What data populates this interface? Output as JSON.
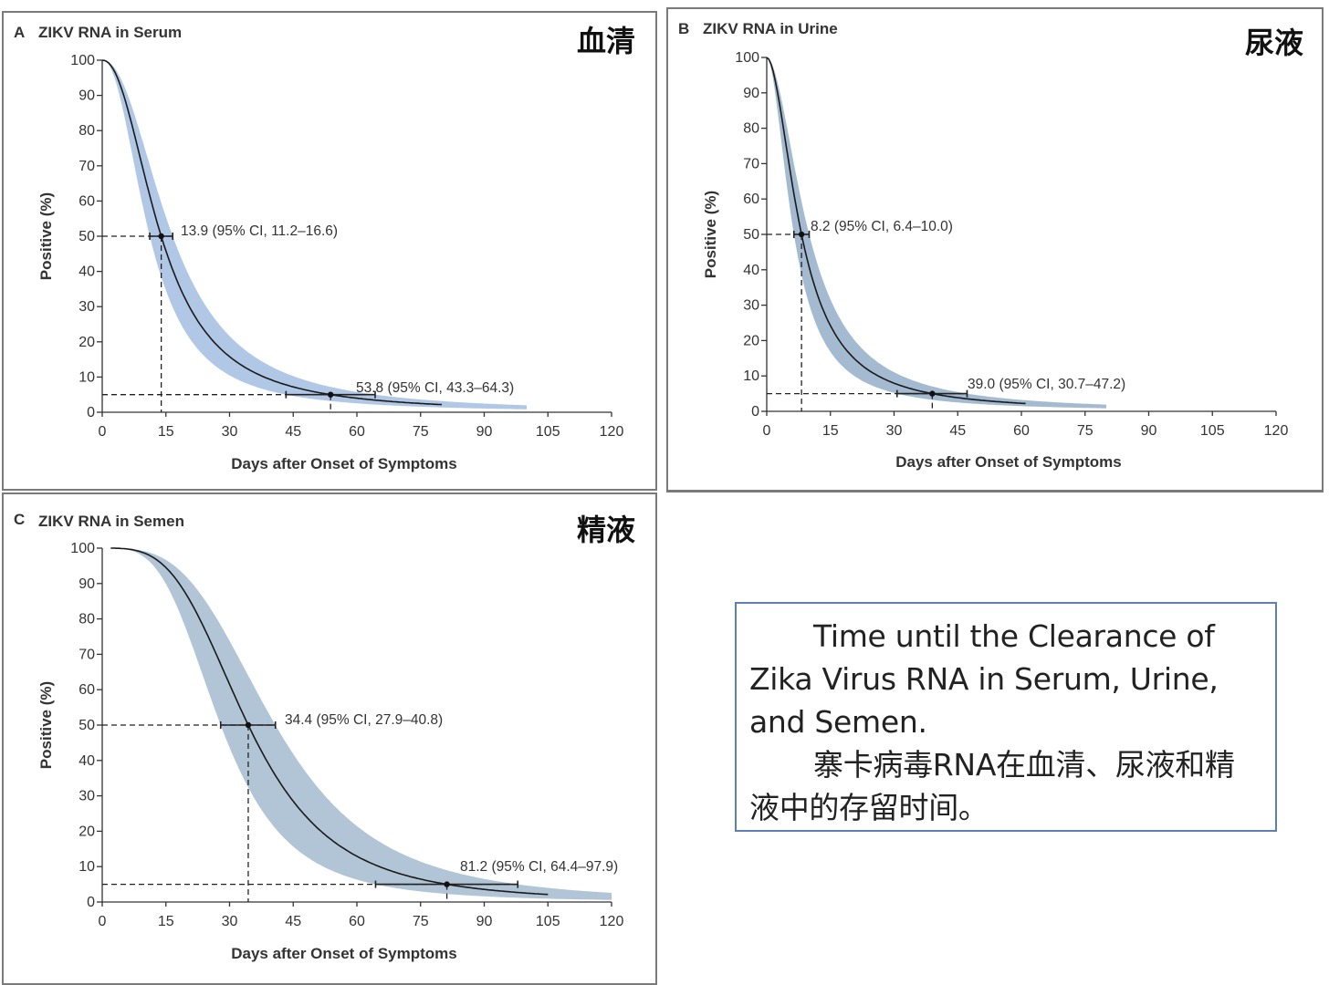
{
  "panels": [
    {
      "id": "a",
      "letter": "A",
      "title": "ZIKV RNA in Serum",
      "cn_label": "血清",
      "xlabel": "Days after Onset of Symptoms",
      "ylabel": "Positive (%)",
      "annotations": {
        "median": "13.9 (95% CI, 11.2–16.6)",
        "p95": "53.8 (95% CI, 43.3–64.3)"
      }
    },
    {
      "id": "b",
      "letter": "B",
      "title": "ZIKV RNA in Urine",
      "cn_label": "尿液",
      "xlabel": "Days after Onset of Symptoms",
      "ylabel": "Positive (%)",
      "annotations": {
        "median": "8.2 (95% CI, 6.4–10.0)",
        "p95": "39.0 (95% CI, 30.7–47.2)"
      }
    },
    {
      "id": "c",
      "letter": "C",
      "title": "ZIKV RNA in Semen",
      "cn_label": "精液",
      "xlabel": "Days after Onset of Symptoms",
      "ylabel": "Positive (%)",
      "annotations": {
        "median": "34.4 (95% CI, 27.9–40.8)",
        "p95": "81.2 (95% CI, 64.4–97.9)"
      }
    }
  ],
  "caption": {
    "en": "Time until the Clearance of Zika Virus RNA in Serum, Urine, and Semen.",
    "zh": "寨卡病毒RNA在血清、尿液和精液中的存留时间。"
  },
  "chart_data": [
    {
      "type": "line",
      "title": "ZIKV RNA in Serum",
      "xlabel": "Days after Onset of Symptoms",
      "ylabel": "Positive (%)",
      "xlim": [
        0,
        120
      ],
      "ylim": [
        0,
        100
      ],
      "xticks": [
        0,
        15,
        30,
        45,
        60,
        75,
        90,
        105,
        120
      ],
      "yticks": [
        0,
        10,
        20,
        30,
        40,
        50,
        60,
        70,
        80,
        90,
        100
      ],
      "median": {
        "x": 13.9,
        "ci": [
          11.2,
          16.6
        ],
        "y": 50
      },
      "p95": {
        "x": 53.8,
        "ci": [
          43.3,
          64.3
        ],
        "y": 5
      },
      "curve_end_x": 80,
      "band_end_x": 100,
      "band_color": "#a9c1e3",
      "line_color": "#1a1a1a"
    },
    {
      "type": "line",
      "title": "ZIKV RNA in Urine",
      "xlabel": "Days after Onset of Symptoms",
      "ylabel": "Positive (%)",
      "xlim": [
        0,
        120
      ],
      "ylim": [
        0,
        100
      ],
      "xticks": [
        0,
        15,
        30,
        45,
        60,
        75,
        90,
        105,
        120
      ],
      "yticks": [
        0,
        10,
        20,
        30,
        40,
        50,
        60,
        70,
        80,
        90,
        100
      ],
      "median": {
        "x": 8.2,
        "ci": [
          6.4,
          10.0
        ],
        "y": 50
      },
      "p95": {
        "x": 39.0,
        "ci": [
          30.7,
          47.2
        ],
        "y": 5
      },
      "curve_end_x": 61,
      "band_end_x": 80,
      "band_color": "#9ab3cc",
      "line_color": "#1a1a1a"
    },
    {
      "type": "line",
      "title": "ZIKV RNA in Semen",
      "xlabel": "Days after Onset of Symptoms",
      "ylabel": "Positive (%)",
      "xlim": [
        0,
        120
      ],
      "ylim": [
        0,
        100
      ],
      "xticks": [
        0,
        15,
        30,
        45,
        60,
        75,
        90,
        105,
        120
      ],
      "yticks": [
        0,
        10,
        20,
        30,
        40,
        50,
        60,
        70,
        80,
        90,
        100
      ],
      "median": {
        "x": 34.4,
        "ci": [
          27.9,
          40.8
        ],
        "y": 50
      },
      "p95": {
        "x": 81.2,
        "ci": [
          64.4,
          97.9
        ],
        "y": 5
      },
      "curve_start_x": 2,
      "curve_end_x": 105,
      "band_end_x": 120,
      "band_color": "#a8bfd2",
      "line_color": "#1a1a1a"
    }
  ]
}
